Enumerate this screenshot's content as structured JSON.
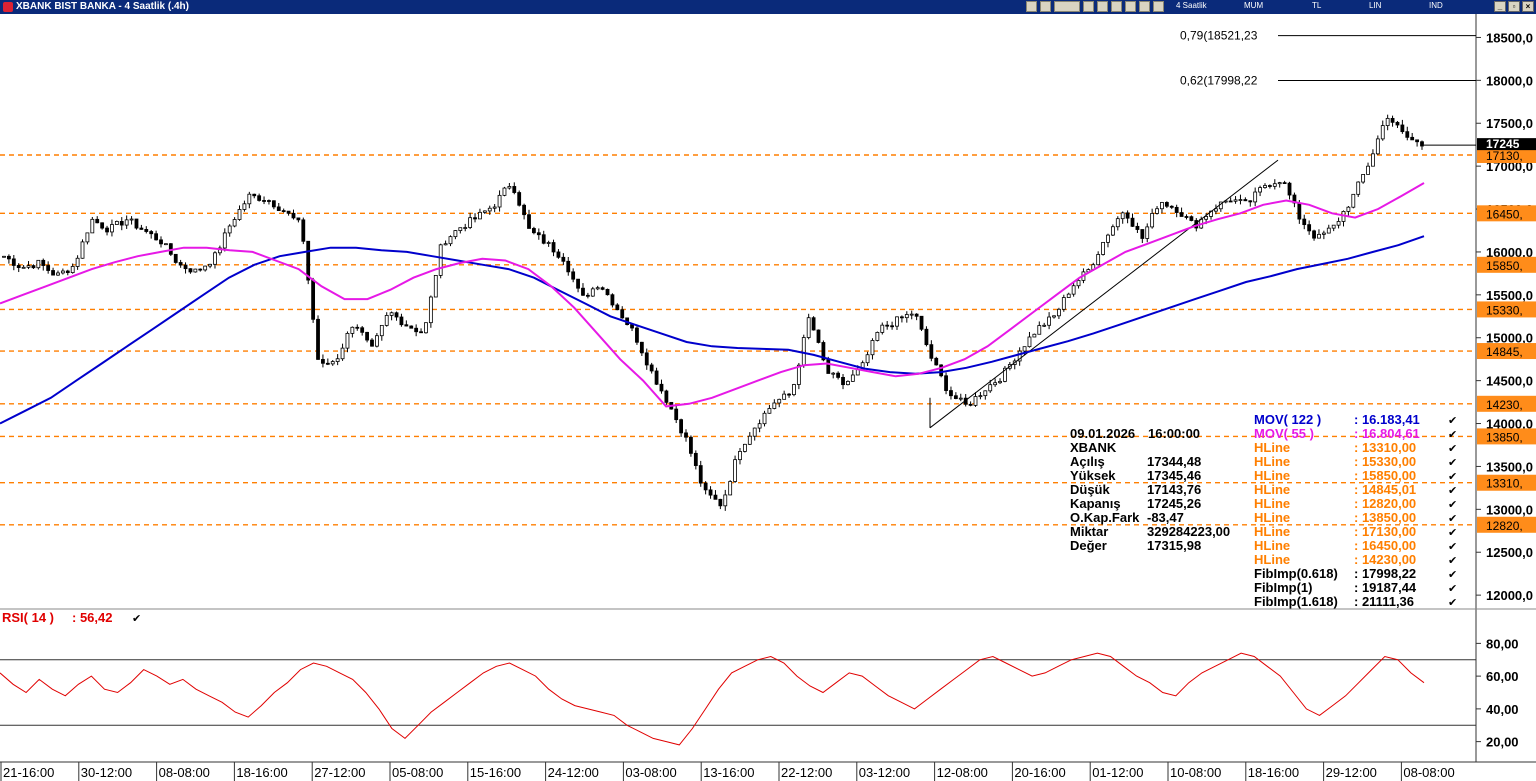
{
  "window": {
    "title": "XBANK BIST BANKA - 4 Saatlik (.4h)",
    "period_label": "4 Saatlik",
    "toggles": [
      "MUM",
      "TL",
      "LIN",
      "IND"
    ]
  },
  "chart_data": {
    "type": "candlestick",
    "symbol": "XBANK",
    "x_ticks": [
      "21-16:00",
      "30-12:00",
      "08-08:00",
      "18-16:00",
      "27-12:00",
      "05-08:00",
      "15-16:00",
      "24-12:00",
      "03-08:00",
      "13-16:00",
      "22-12:00",
      "03-12:00",
      "12-08:00",
      "20-16:00",
      "01-12:00",
      "10-08:00",
      "18-16:00",
      "29-12:00",
      "08-08:00"
    ],
    "price_axis": {
      "ticks": [
        "18500,0",
        "18000,0",
        "17500,0",
        "17000,0",
        "16500,0",
        "16000,0",
        "15500,0",
        "15000,0",
        "14500,0",
        "14000,0",
        "13500,0",
        "13000,0",
        "12500,0",
        "12000,0"
      ],
      "ylim": [
        11850,
        18750
      ],
      "current_price_label": "17245"
    },
    "close_path": [
      15950,
      15820,
      15870,
      15720,
      15840,
      16380,
      16260,
      16380,
      16250,
      16120,
      15850,
      15770,
      15930,
      16350,
      16650,
      16620,
      16480,
      16300,
      14650,
      14750,
      15200,
      14850,
      15300,
      15150,
      15050,
      16100,
      16280,
      16400,
      16550,
      16820,
      16250,
      16100,
      15920,
      15450,
      15640,
      15350,
      15050,
      14600,
      14220,
      13800,
      13200,
      13050,
      13700,
      14000,
      14250,
      14350,
      15250,
      14600,
      14450,
      14650,
      15100,
      15200,
      15300,
      14750,
      14350,
      14200,
      14400,
      14550,
      14850,
      15100,
      15250,
      15600,
      15800,
      16200,
      16500,
      16150,
      16600,
      16500,
      16300,
      16500,
      16620,
      16550,
      16780,
      16850,
      16400,
      16150,
      16300,
      16620,
      17050,
      17600,
      17350,
      17245
    ],
    "moving_averages": [
      {
        "label": "MOV( 122 )",
        "value": "16.183,41",
        "color": "#0000cc",
        "values": [
          14000,
          14150,
          14300,
          14500,
          14700,
          14900,
          15100,
          15300,
          15500,
          15700,
          15850,
          15950,
          16000,
          16050,
          16050,
          16020,
          16000,
          15950,
          15900,
          15850,
          15800,
          15700,
          15550,
          15400,
          15250,
          15150,
          15050,
          14950,
          14900,
          14880,
          14870,
          14860,
          14800,
          14720,
          14640,
          14600,
          14580,
          14600,
          14650,
          14720,
          14800,
          14880,
          14960,
          15050,
          15150,
          15250,
          15350,
          15450,
          15550,
          15650,
          15720,
          15800,
          15860,
          15920,
          16000,
          16080,
          16183
        ]
      },
      {
        "label": "MOV( 55 )",
        "value": "16.804,61",
        "color": "#e619e6",
        "values": [
          15400,
          15500,
          15600,
          15700,
          15800,
          15880,
          15950,
          16000,
          16050,
          16050,
          16020,
          16000,
          15900,
          15800,
          15600,
          15450,
          15450,
          15560,
          15700,
          15800,
          15870,
          15920,
          15900,
          15800,
          15600,
          15350,
          15050,
          14750,
          14500,
          14200,
          14230,
          14300,
          14400,
          14500,
          14600,
          14680,
          14700,
          14650,
          14600,
          14550,
          14580,
          14650,
          14750,
          14900,
          15100,
          15300,
          15500,
          15700,
          15850,
          16000,
          16100,
          16200,
          16300,
          16380,
          16450,
          16550,
          16600,
          16550,
          16450,
          16400,
          16500,
          16650,
          16804
        ]
      }
    ],
    "horizontal_lines": [
      {
        "label": "17130,",
        "value": 17130
      },
      {
        "label": "16450,",
        "value": 16450
      },
      {
        "label": "15850,",
        "value": 15850
      },
      {
        "label": "15330,",
        "value": 15330
      },
      {
        "label": "14845,",
        "value": 14845
      },
      {
        "label": "14230,",
        "value": 14230
      },
      {
        "label": "13850,",
        "value": 13850
      },
      {
        "label": "13310,",
        "value": 13310
      },
      {
        "label": "12820,",
        "value": 12820
      }
    ],
    "fib_lines": [
      {
        "label": "0,79(18521,23",
        "value": 18521.23
      },
      {
        "label": "0,62(17998,22",
        "value": 17998.22
      }
    ],
    "info_box": {
      "date": "09.01.2026",
      "time": "16:00:00",
      "symbol": "XBANK",
      "rows": [
        {
          "label": "Açılış",
          "value": "17344,48"
        },
        {
          "label": "Yüksek",
          "value": "17345,46"
        },
        {
          "label": "Düşük",
          "value": "17143,76"
        },
        {
          "label": "Kapanış",
          "value": "17245,26"
        },
        {
          "label": "O.Kap.Fark",
          "value": "-83,47"
        },
        {
          "label": "Miktar",
          "value": "329284223,00"
        },
        {
          "label": "Değer",
          "value": "17315,98"
        }
      ]
    },
    "legend": [
      {
        "label": "MOV( 122 )",
        "value": ": 16.183,41",
        "color": "#0000cc"
      },
      {
        "label": "MOV( 55 )",
        "value": ": 16.804,61",
        "color": "#e619e6"
      },
      {
        "label": "HLine",
        "value": ": 13310,00",
        "color": "#ff7f00"
      },
      {
        "label": "HLine",
        "value": ": 15330,00",
        "color": "#ff7f00"
      },
      {
        "label": "HLine",
        "value": ": 15850,00",
        "color": "#ff7f00"
      },
      {
        "label": "HLine",
        "value": ": 14845,01",
        "color": "#ff7f00"
      },
      {
        "label": "HLine",
        "value": ": 12820,00",
        "color": "#ff7f00"
      },
      {
        "label": "HLine",
        "value": ": 13850,00",
        "color": "#ff7f00"
      },
      {
        "label": "HLine",
        "value": ": 17130,00",
        "color": "#ff7f00"
      },
      {
        "label": "HLine",
        "value": ": 16450,00",
        "color": "#ff7f00"
      },
      {
        "label": "HLine",
        "value": ": 14230,00",
        "color": "#ff7f00"
      },
      {
        "label": "FibImp(0.618)",
        "value": ": 17998,22",
        "color": "#000000"
      },
      {
        "label": "FibImp(1)",
        "value": ": 19187,44",
        "color": "#000000"
      },
      {
        "label": "FibImp(1.618)",
        "value": ": 21111,36",
        "color": "#000000"
      }
    ],
    "rsi": {
      "label": "RSI( 14 )",
      "value": ": 56,42",
      "ticks": [
        "80,00",
        "60,00",
        "40,00",
        "20,00"
      ],
      "ylim": [
        10,
        90
      ],
      "levels": [
        70,
        30
      ],
      "values": [
        62,
        55,
        50,
        58,
        52,
        48,
        55,
        60,
        52,
        50,
        56,
        64,
        60,
        55,
        58,
        52,
        48,
        44,
        38,
        35,
        42,
        50,
        56,
        64,
        68,
        66,
        62,
        58,
        50,
        40,
        28,
        22,
        30,
        38,
        44,
        50,
        56,
        62,
        66,
        68,
        64,
        60,
        52,
        46,
        42,
        40,
        38,
        36,
        30,
        26,
        22,
        20,
        18,
        28,
        40,
        52,
        62,
        66,
        70,
        72,
        68,
        60,
        54,
        50,
        56,
        62,
        60,
        54,
        48,
        44,
        40,
        46,
        52,
        58,
        64,
        70,
        72,
        68,
        64,
        60,
        62,
        66,
        70,
        72,
        74,
        72,
        66,
        60,
        56,
        50,
        48,
        56,
        62,
        66,
        70,
        74,
        72,
        66,
        60,
        50,
        40,
        36,
        42,
        48,
        56,
        64,
        72,
        70,
        62,
        56
      ]
    }
  }
}
